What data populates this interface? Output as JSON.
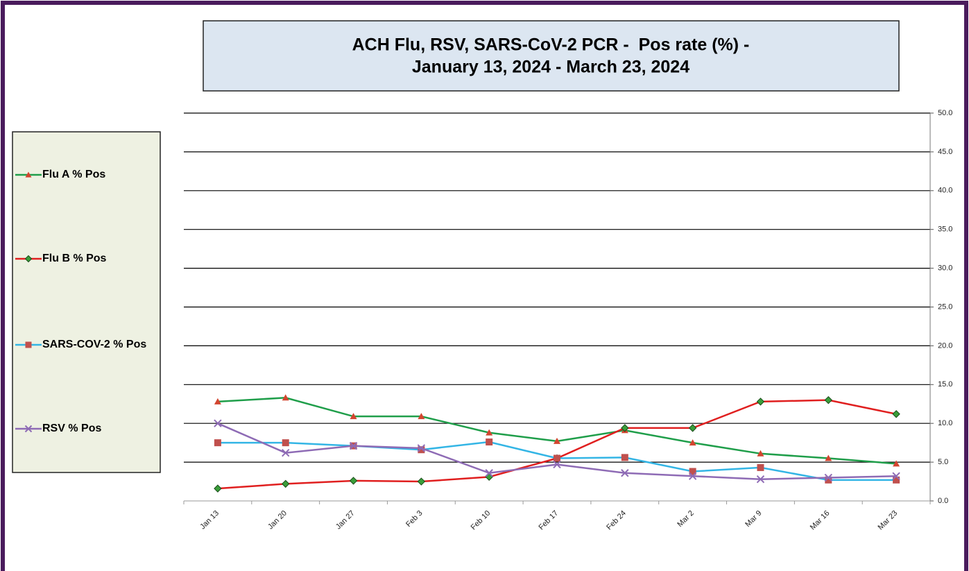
{
  "chart_data": {
    "type": "line",
    "title": "ACH Flu, RSV, SARS-CoV-2 PCR -  Pos rate (%) -",
    "subtitle": "January 13, 2024 - March 23, 2024",
    "categories": [
      "Jan 13",
      "Jan 20",
      "Jan 27",
      "Feb 3",
      "Feb 10",
      "Feb 17",
      "Feb 24",
      "Mar 2",
      "Mar 9",
      "Mar 16",
      "Mar 23"
    ],
    "series": [
      {
        "name": "Flu A % Pos",
        "color": "#1f9e4a",
        "marker": "triangle",
        "marker_color": "#d2452f",
        "values": [
          12.8,
          13.3,
          10.9,
          10.9,
          8.8,
          7.7,
          9.1,
          7.5,
          6.1,
          5.5,
          4.8
        ]
      },
      {
        "name": "Flu B % Pos",
        "color": "#e01f1f",
        "marker": "diamond",
        "marker_color": "#3a9e3a",
        "values": [
          1.6,
          2.2,
          2.6,
          2.5,
          3.1,
          5.5,
          9.4,
          9.4,
          12.8,
          13.0,
          11.2
        ]
      },
      {
        "name": "SARS-COV-2 % Pos",
        "color": "#33b5e5",
        "marker": "square",
        "marker_color": "#c0504d",
        "values": [
          7.5,
          7.5,
          7.1,
          6.6,
          7.6,
          5.5,
          5.6,
          3.8,
          4.3,
          2.7,
          2.7
        ]
      },
      {
        "name": "RSV % Pos",
        "color": "#8e6bb5",
        "marker": "x",
        "marker_color": "#8e6bb5",
        "values": [
          10.0,
          6.2,
          7.1,
          6.8,
          3.6,
          4.7,
          3.6,
          3.2,
          2.8,
          3.0,
          3.2
        ]
      }
    ],
    "ylim": [
      0,
      50
    ],
    "yticks": [
      {
        "value": 0,
        "label": "0.0"
      },
      {
        "value": 5,
        "label": "5.0"
      },
      {
        "value": 10,
        "label": "10.0"
      },
      {
        "value": 15,
        "label": "15.0"
      },
      {
        "value": 20,
        "label": "20.0"
      },
      {
        "value": 25,
        "label": "25.0"
      },
      {
        "value": 30,
        "label": "30.0"
      },
      {
        "value": 35,
        "label": "35.0"
      },
      {
        "value": 40,
        "label": "40.0"
      },
      {
        "value": 45,
        "label": "45.0"
      },
      {
        "value": 50,
        "label": "50.0"
      }
    ],
    "y_axis_side": "right",
    "grid": true,
    "legend": "left"
  }
}
